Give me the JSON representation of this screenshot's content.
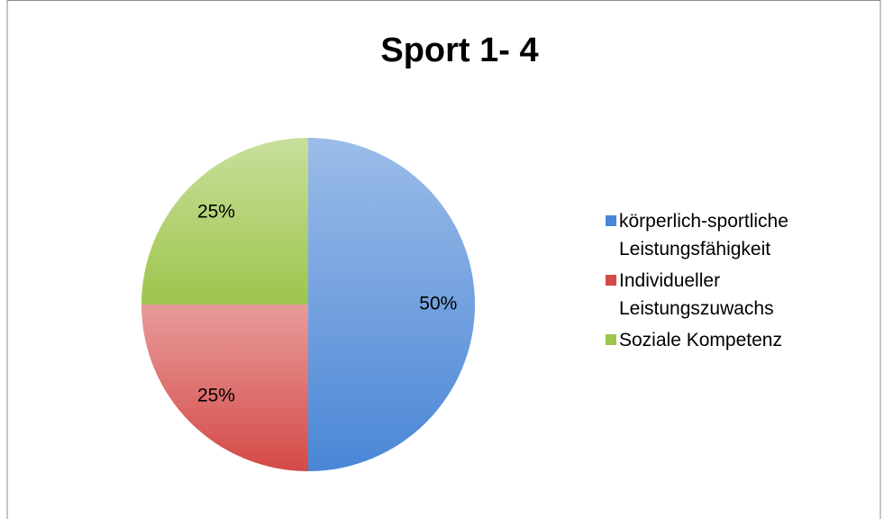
{
  "chart_data": {
    "type": "pie",
    "title": "Sport 1- 4",
    "categories": [
      "körperlich-sportliche Leistungsfähigkeit",
      "Individueller Leistungszuwachs",
      "Soziale Kompetenz"
    ],
    "values": [
      50,
      25,
      25
    ],
    "value_labels": [
      "50%",
      "25%",
      "25%"
    ],
    "colors": [
      "#4a86d6",
      "#d44a48",
      "#9dc54c"
    ],
    "legend": "right"
  }
}
